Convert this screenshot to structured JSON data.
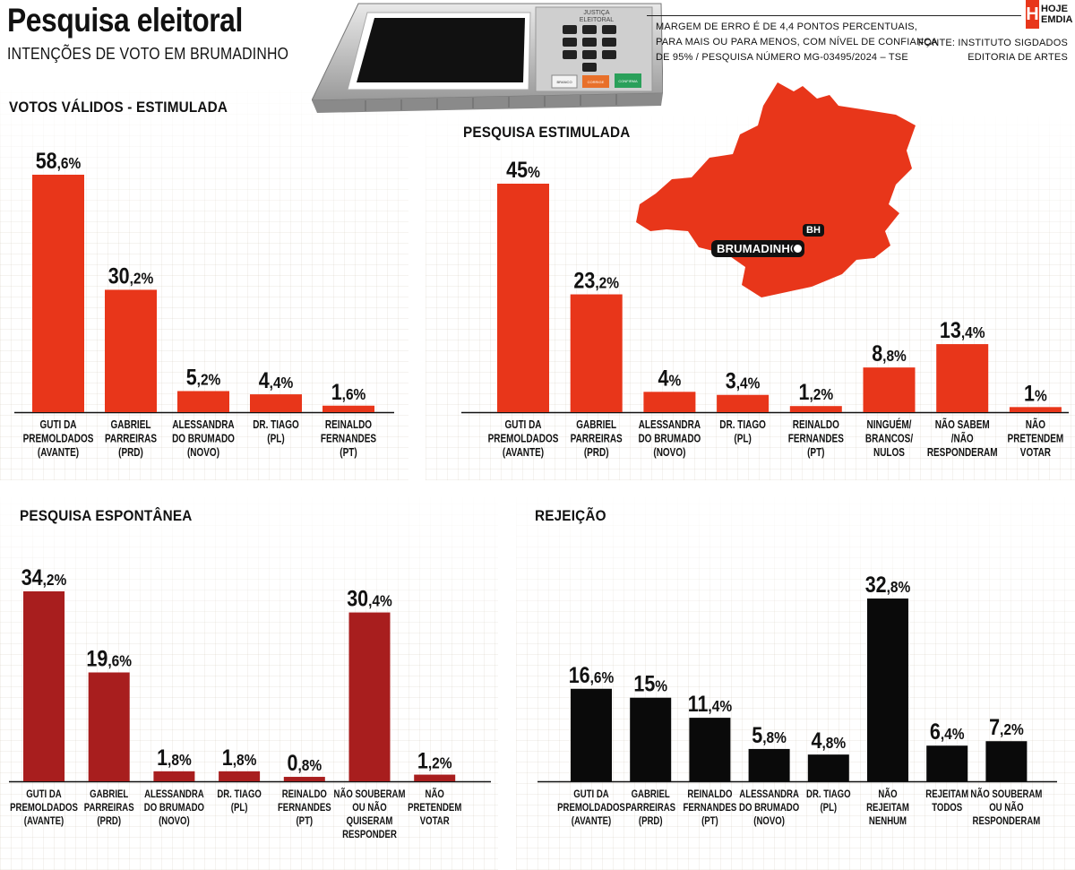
{
  "header": {
    "title": "Pesquisa eleitoral",
    "subtitle": "INTENÇÕES DE VOTO EM BRUMADINHO",
    "note_lines": [
      "MARGEM DE ERRO É DE 4,4 PONTOS PERCENTUAIS,",
      "PARA MAIS OU PARA MENOS, COM NÍVEL DE CONFIANÇA",
      "DE 95% / PESQUISA NÚMERO MG-03495/2024 – TSE"
    ],
    "source_lines": [
      "FONTE: INSTITUTO SIGDADOS",
      "EDITORIA DE ARTES"
    ],
    "logo_letter": "H",
    "logo_lines": [
      "HOJE",
      "EMDIA"
    ]
  },
  "urna": {
    "label_lines": [
      "JUSTIÇA",
      "ELEITORAL"
    ],
    "buttons": [
      "BRANCO",
      "CORRIGE",
      "CONFIRMA"
    ]
  },
  "map": {
    "city_label": "BRUMADINHO",
    "capital_label": "BH",
    "fill_color": "#e8361a"
  },
  "colors": {
    "red": "#e8361a",
    "dark_red": "#a81e1e",
    "black": "#0a0a0a"
  },
  "chart_data": [
    {
      "id": "validos",
      "type": "bar",
      "title": "VOTOS VÁLIDOS - ESTIMULADA",
      "color": "#e8361a",
      "ylim": [
        0,
        58.6
      ],
      "categories": [
        [
          "GUTI DA",
          "PREMOLDADOS",
          "(AVANTE)"
        ],
        [
          "GABRIEL",
          "PARREIRAS",
          "(PRD)"
        ],
        [
          "ALESSANDRA",
          "DO BRUMADO",
          "(NOVO)"
        ],
        [
          "DR. TIAGO",
          "(PL)"
        ],
        [
          "REINALDO",
          "FERNANDES",
          "(PT)"
        ]
      ],
      "values": [
        58.6,
        30.2,
        5.2,
        4.4,
        1.6
      ],
      "labels": [
        [
          "58",
          ",6%"
        ],
        [
          "30",
          ",2%"
        ],
        [
          "5",
          ",2%"
        ],
        [
          "4",
          ",4%"
        ],
        [
          "1",
          ",6%"
        ]
      ]
    },
    {
      "id": "estimulada",
      "type": "bar",
      "title": "PESQUISA ESTIMULADA",
      "color": "#e8361a",
      "ylim": [
        0,
        45
      ],
      "categories": [
        [
          "GUTI DA",
          "PREMOLDADOS",
          "(AVANTE)"
        ],
        [
          "GABRIEL",
          "PARREIRAS",
          "(PRD)"
        ],
        [
          "ALESSANDRA",
          "DO BRUMADO",
          "(NOVO)"
        ],
        [
          "DR. TIAGO",
          "(PL)"
        ],
        [
          "REINALDO",
          "FERNANDES",
          "(PT)"
        ],
        [
          "NINGUÉM/",
          "BRANCOS/",
          "NULOS"
        ],
        [
          "NÃO SABEM",
          "/NÃO",
          "RESPONDERAM"
        ],
        [
          "NÃO",
          "PRETENDEM",
          "VOTAR"
        ]
      ],
      "values": [
        45,
        23.2,
        4,
        3.4,
        1.2,
        8.8,
        13.4,
        1
      ],
      "labels": [
        [
          "45",
          "%"
        ],
        [
          "23",
          ",2%"
        ],
        [
          "4",
          "%"
        ],
        [
          "3",
          ",4%"
        ],
        [
          "1",
          ",2%"
        ],
        [
          "8",
          ",8%"
        ],
        [
          "13",
          ",4%"
        ],
        [
          "1",
          "%"
        ]
      ]
    },
    {
      "id": "espontanea",
      "type": "bar",
      "title": "PESQUISA ESPONTÂNEA",
      "color": "#a81e1e",
      "ylim": [
        0,
        34.2
      ],
      "categories": [
        [
          "GUTI DA",
          "PREMOLDADOS",
          "(AVANTE)"
        ],
        [
          "GABRIEL",
          "PARREIRAS",
          "(PRD)"
        ],
        [
          "ALESSANDRA",
          "DO BRUMADO",
          "(NOVO)"
        ],
        [
          "DR. TIAGO",
          "(PL)"
        ],
        [
          "REINALDO",
          "FERNANDES",
          "(PT)"
        ],
        [
          "NÃO SOUBERAM",
          "OU NÃO",
          "QUISERAM",
          "RESPONDER"
        ],
        [
          "NÃO",
          "PRETENDEM",
          "VOTAR"
        ]
      ],
      "values": [
        34.2,
        19.6,
        1.8,
        1.8,
        0.8,
        30.4,
        1.2
      ],
      "labels": [
        [
          "34",
          ",2%"
        ],
        [
          "19",
          ",6%"
        ],
        [
          "1",
          ",8%"
        ],
        [
          "1",
          ",8%"
        ],
        [
          "0",
          ",8%"
        ],
        [
          "30",
          ",4%"
        ],
        [
          "1",
          ",2%"
        ]
      ]
    },
    {
      "id": "rejeicao",
      "type": "bar",
      "title": "REJEIÇÃO",
      "color": "#0a0a0a",
      "ylim": [
        0,
        32.8
      ],
      "categories": [
        [
          "GUTI DA",
          "PREMOLDADOS",
          "(AVANTE)"
        ],
        [
          "GABRIEL",
          "PARREIRAS",
          "(PRD)"
        ],
        [
          "REINALDO",
          "FERNANDES",
          "(PT)"
        ],
        [
          "ALESSANDRA",
          "DO BRUMADO",
          "(NOVO)"
        ],
        [
          "DR. TIAGO",
          "(PL)"
        ],
        [
          "NÃO",
          "REJEITAM",
          "NENHUM"
        ],
        [
          "REJEITAM",
          "TODOS"
        ],
        [
          "NÃO SOUBERAM",
          "OU NÃO",
          "RESPONDERAM"
        ]
      ],
      "values": [
        16.6,
        15,
        11.4,
        5.8,
        4.8,
        32.8,
        6.4,
        7.2
      ],
      "labels": [
        [
          "16",
          ",6%"
        ],
        [
          "15",
          "%"
        ],
        [
          "11",
          ",4%"
        ],
        [
          "5",
          ",8%"
        ],
        [
          "4",
          ",8%"
        ],
        [
          "32",
          ",8%"
        ],
        [
          "6",
          ",4%"
        ],
        [
          "7",
          ",2%"
        ]
      ]
    }
  ]
}
